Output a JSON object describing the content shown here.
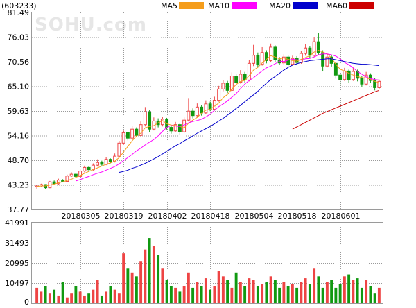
{
  "header": {
    "code": "(603233)",
    "legend": [
      {
        "name": "MA5",
        "color": "#f59d1b"
      },
      {
        "name": "MA10",
        "color": "#ff00ff"
      },
      {
        "name": "MA20",
        "color": "#0000cc"
      },
      {
        "name": "MA60",
        "color": "#cc0000"
      }
    ]
  },
  "watermark": "SOHU.com",
  "colors": {
    "up": "#ee4444",
    "down": "#119911",
    "grid": "#9a9a9a"
  },
  "chart_data": [
    {
      "type": "candlestick",
      "ylim": [
        37.77,
        81.49
      ],
      "yticks": [
        "81.49",
        "76.03",
        "70.56",
        "65.10",
        "59.63",
        "54.16",
        "48.70",
        "43.23",
        "37.77"
      ],
      "xtick_labels": [
        {
          "label": "20180305",
          "index": 10
        },
        {
          "label": "20180319",
          "index": 20
        },
        {
          "label": "20180402",
          "index": 30
        },
        {
          "label": "20180418",
          "index": 40
        },
        {
          "label": "20180504",
          "index": 50
        },
        {
          "label": "20180518",
          "index": 60
        },
        {
          "label": "20180601",
          "index": 70
        }
      ],
      "candles": [
        [
          42.8,
          43.0,
          42.4,
          43.1
        ],
        [
          43.0,
          43.3,
          42.8,
          43.5
        ],
        [
          43.3,
          42.6,
          42.3,
          43.4
        ],
        [
          42.6,
          43.9,
          42.5,
          44.1
        ],
        [
          43.9,
          43.5,
          43.2,
          44.2
        ],
        [
          43.5,
          44.3,
          43.3,
          44.6
        ],
        [
          44.3,
          44.0,
          43.8,
          44.5
        ],
        [
          44.0,
          45.2,
          43.9,
          45.5
        ],
        [
          45.2,
          45.6,
          45.0,
          46.0
        ],
        [
          45.6,
          45.1,
          44.8,
          45.9
        ],
        [
          45.1,
          46.3,
          45.0,
          46.8
        ],
        [
          46.3,
          47.1,
          46.0,
          47.5
        ],
        [
          47.1,
          46.6,
          46.3,
          47.4
        ],
        [
          46.6,
          47.6,
          46.4,
          48.0
        ],
        [
          47.6,
          48.2,
          47.3,
          48.9
        ],
        [
          48.2,
          47.8,
          47.5,
          48.6
        ],
        [
          47.8,
          48.9,
          47.6,
          49.4
        ],
        [
          48.9,
          48.4,
          48.0,
          49.1
        ],
        [
          48.4,
          49.6,
          48.2,
          50.2
        ],
        [
          49.6,
          52.5,
          49.4,
          53.0
        ],
        [
          52.5,
          54.8,
          52.1,
          55.3
        ],
        [
          54.8,
          53.6,
          53.1,
          55.0
        ],
        [
          53.6,
          55.6,
          53.4,
          56.3
        ],
        [
          55.6,
          54.2,
          53.8,
          56.0
        ],
        [
          54.2,
          56.6,
          54.0,
          57.3
        ],
        [
          56.6,
          59.4,
          56.2,
          60.5
        ],
        [
          59.4,
          55.6,
          55.0,
          59.8
        ],
        [
          55.6,
          57.4,
          55.3,
          58.2
        ],
        [
          57.4,
          56.6,
          56.0,
          58.0
        ],
        [
          56.6,
          57.8,
          56.2,
          58.4
        ],
        [
          57.8,
          56.0,
          55.5,
          58.1
        ],
        [
          56.0,
          55.2,
          54.6,
          56.5
        ],
        [
          55.2,
          56.6,
          54.9,
          57.2
        ],
        [
          56.6,
          55.0,
          54.4,
          56.9
        ],
        [
          55.0,
          57.6,
          54.8,
          58.2
        ],
        [
          57.6,
          59.6,
          57.3,
          62.5
        ],
        [
          59.6,
          58.6,
          58.0,
          60.2
        ],
        [
          58.6,
          60.5,
          58.3,
          61.3
        ],
        [
          60.5,
          59.2,
          58.6,
          61.0
        ],
        [
          59.2,
          61.2,
          58.9,
          62.0
        ],
        [
          61.2,
          60.0,
          59.6,
          61.7
        ],
        [
          60.0,
          62.0,
          59.7,
          62.8
        ],
        [
          62.0,
          64.5,
          61.7,
          65.2
        ],
        [
          64.5,
          65.8,
          64.0,
          66.5
        ],
        [
          65.8,
          64.2,
          63.6,
          66.3
        ],
        [
          64.2,
          67.4,
          63.9,
          68.2
        ],
        [
          67.4,
          66.0,
          65.4,
          67.8
        ],
        [
          66.0,
          67.8,
          65.7,
          68.7
        ],
        [
          67.8,
          66.5,
          65.8,
          68.3
        ],
        [
          66.5,
          70.2,
          66.2,
          71.0
        ],
        [
          70.2,
          72.0,
          69.6,
          74.3
        ],
        [
          72.0,
          70.0,
          69.4,
          72.6
        ],
        [
          70.0,
          72.6,
          69.7,
          73.8
        ],
        [
          72.6,
          70.8,
          70.2,
          73.1
        ],
        [
          70.8,
          73.8,
          70.5,
          74.6
        ],
        [
          73.8,
          71.0,
          70.4,
          74.2
        ],
        [
          71.0,
          70.3,
          69.8,
          71.6
        ],
        [
          70.3,
          71.6,
          69.9,
          72.2
        ],
        [
          71.6,
          70.0,
          69.5,
          72.0
        ],
        [
          70.0,
          71.3,
          69.7,
          71.9
        ],
        [
          71.3,
          70.4,
          69.9,
          71.8
        ],
        [
          70.4,
          72.4,
          70.1,
          73.0
        ],
        [
          72.4,
          73.6,
          71.9,
          74.5
        ],
        [
          73.6,
          72.0,
          71.4,
          74.0
        ],
        [
          72.0,
          75.0,
          71.7,
          76.0
        ],
        [
          75.0,
          72.6,
          72.0,
          77.0
        ],
        [
          72.6,
          69.6,
          68.4,
          73.1
        ],
        [
          69.6,
          71.6,
          69.3,
          72.3
        ],
        [
          71.6,
          70.2,
          69.5,
          72.0
        ],
        [
          70.2,
          67.6,
          66.8,
          70.5
        ],
        [
          67.6,
          66.6,
          65.2,
          68.0
        ],
        [
          66.6,
          68.5,
          66.3,
          69.2
        ],
        [
          68.5,
          66.6,
          65.9,
          68.8
        ],
        [
          66.6,
          68.4,
          66.3,
          69.2
        ],
        [
          68.4,
          66.9,
          66.2,
          68.8
        ],
        [
          66.9,
          65.6,
          64.9,
          67.4
        ],
        [
          65.6,
          67.6,
          65.3,
          68.3
        ],
        [
          67.6,
          66.4,
          65.8,
          68.0
        ],
        [
          66.4,
          64.8,
          64.2,
          66.9
        ],
        [
          64.8,
          66.2,
          64.5,
          66.6
        ]
      ],
      "ma5": [
        42.9,
        43.0,
        43.0,
        43.2,
        43.4,
        43.7,
        43.9,
        44.2,
        44.5,
        44.9,
        45.3,
        45.8,
        46.2,
        46.6,
        47.0,
        47.4,
        47.8,
        48.1,
        48.5,
        49.3,
        50.5,
        51.8,
        53.0,
        54.1,
        54.7,
        55.9,
        56.2,
        56.4,
        57.0,
        57.5,
        56.8,
        56.5,
        56.4,
        56.2,
        55.9,
        56.9,
        57.6,
        58.2,
        59.1,
        59.8,
        60.0,
        60.7,
        61.4,
        62.6,
        63.3,
        64.5,
        65.5,
        66.2,
        66.4,
        67.5,
        68.7,
        69.3,
        70.3,
        71.1,
        71.9,
        71.6,
        71.2,
        71.4,
        71.1,
        70.8,
        70.7,
        71.1,
        71.5,
        71.9,
        72.7,
        73.1,
        72.7,
        72.3,
        71.4,
        70.0,
        68.9,
        68.5,
        68.0,
        67.6,
        67.3,
        67.0,
        67.0,
        66.7,
        66.2,
        65.9
      ],
      "ma10": [
        null,
        null,
        null,
        null,
        null,
        null,
        null,
        null,
        null,
        44.1,
        44.4,
        44.8,
        45.1,
        45.5,
        45.8,
        46.1,
        46.5,
        46.9,
        47.3,
        47.9,
        48.6,
        49.3,
        50.0,
        50.8,
        51.4,
        52.1,
        52.7,
        53.3,
        54.1,
        55.1,
        56.0,
        56.4,
        56.3,
        56.2,
        56.5,
        57.0,
        57.3,
        57.5,
        57.8,
        58.3,
        58.9,
        59.8,
        60.6,
        61.2,
        61.9,
        62.7,
        63.5,
        64.6,
        65.6,
        66.4,
        67.0,
        67.8,
        68.5,
        69.2,
        69.6,
        70.1,
        70.7,
        70.6,
        70.9,
        71.1,
        71.0,
        70.9,
        71.2,
        71.3,
        71.6,
        72.1,
        72.3,
        72.3,
        72.1,
        71.8,
        71.2,
        70.4,
        69.9,
        69.2,
        68.4,
        67.8,
        67.2,
        66.8,
        66.6,
        66.5
      ],
      "ma20": [
        null,
        null,
        null,
        null,
        null,
        null,
        null,
        null,
        null,
        null,
        null,
        null,
        null,
        null,
        null,
        null,
        null,
        null,
        null,
        46.0,
        46.2,
        46.5,
        46.9,
        47.2,
        47.6,
        48.0,
        48.5,
        49.0,
        49.5,
        50.1,
        50.7,
        51.3,
        51.9,
        52.4,
        53.0,
        53.5,
        54.1,
        54.7,
        55.2,
        55.7,
        56.2,
        56.8,
        57.4,
        58.0,
        58.7,
        59.4,
        60.2,
        60.9,
        61.7,
        62.5,
        63.2,
        64.0,
        64.9,
        65.8,
        66.6,
        67.3,
        68.0,
        68.7,
        69.3,
        69.8,
        70.1,
        70.4,
        70.6,
        70.8,
        70.9,
        71.0,
        71.1,
        71.2,
        71.2,
        71.0,
        70.8,
        70.6,
        70.4,
        70.2,
        70.1,
        70.0,
        70.0,
        69.9,
        69.8,
        69.7
      ],
      "ma60": [
        null,
        null,
        null,
        null,
        null,
        null,
        null,
        null,
        null,
        null,
        null,
        null,
        null,
        null,
        null,
        null,
        null,
        null,
        null,
        null,
        null,
        null,
        null,
        null,
        null,
        null,
        null,
        null,
        null,
        null,
        null,
        null,
        null,
        null,
        null,
        null,
        null,
        null,
        null,
        null,
        null,
        null,
        null,
        null,
        null,
        null,
        null,
        null,
        null,
        null,
        null,
        null,
        null,
        null,
        null,
        null,
        null,
        null,
        null,
        55.6,
        56.1,
        56.6,
        57.1,
        57.6,
        58.1,
        58.6,
        59.1,
        59.5,
        59.9,
        60.3,
        60.7,
        61.1,
        61.5,
        61.9,
        62.3,
        62.7,
        63.1,
        63.5,
        63.9,
        64.2
      ]
    },
    {
      "type": "bar",
      "ylim": [
        0,
        41991
      ],
      "yticks": [
        "41991",
        "31493",
        "20995",
        "10497",
        "0"
      ],
      "values": [
        8000,
        6000,
        9000,
        5000,
        7000,
        4000,
        11000,
        3000,
        5000,
        9000,
        6000,
        4000,
        5000,
        7000,
        12000,
        4000,
        6000,
        9000,
        7000,
        5000,
        26000,
        18000,
        16000,
        14000,
        22000,
        28000,
        34000,
        30000,
        25000,
        18000,
        12000,
        9000,
        8000,
        6000,
        9000,
        16000,
        8000,
        11000,
        9000,
        13000,
        7000,
        9000,
        17000,
        14000,
        12000,
        8000,
        16000,
        11000,
        9000,
        13000,
        12000,
        9000,
        10000,
        11000,
        14000,
        12000,
        8000,
        11000,
        9000,
        10000,
        8000,
        11000,
        13000,
        10000,
        18000,
        14000,
        8000,
        11000,
        12000,
        8000,
        10000,
        14000,
        15000,
        12000,
        13000,
        8000,
        12000,
        9000,
        5000,
        8000
      ]
    }
  ]
}
